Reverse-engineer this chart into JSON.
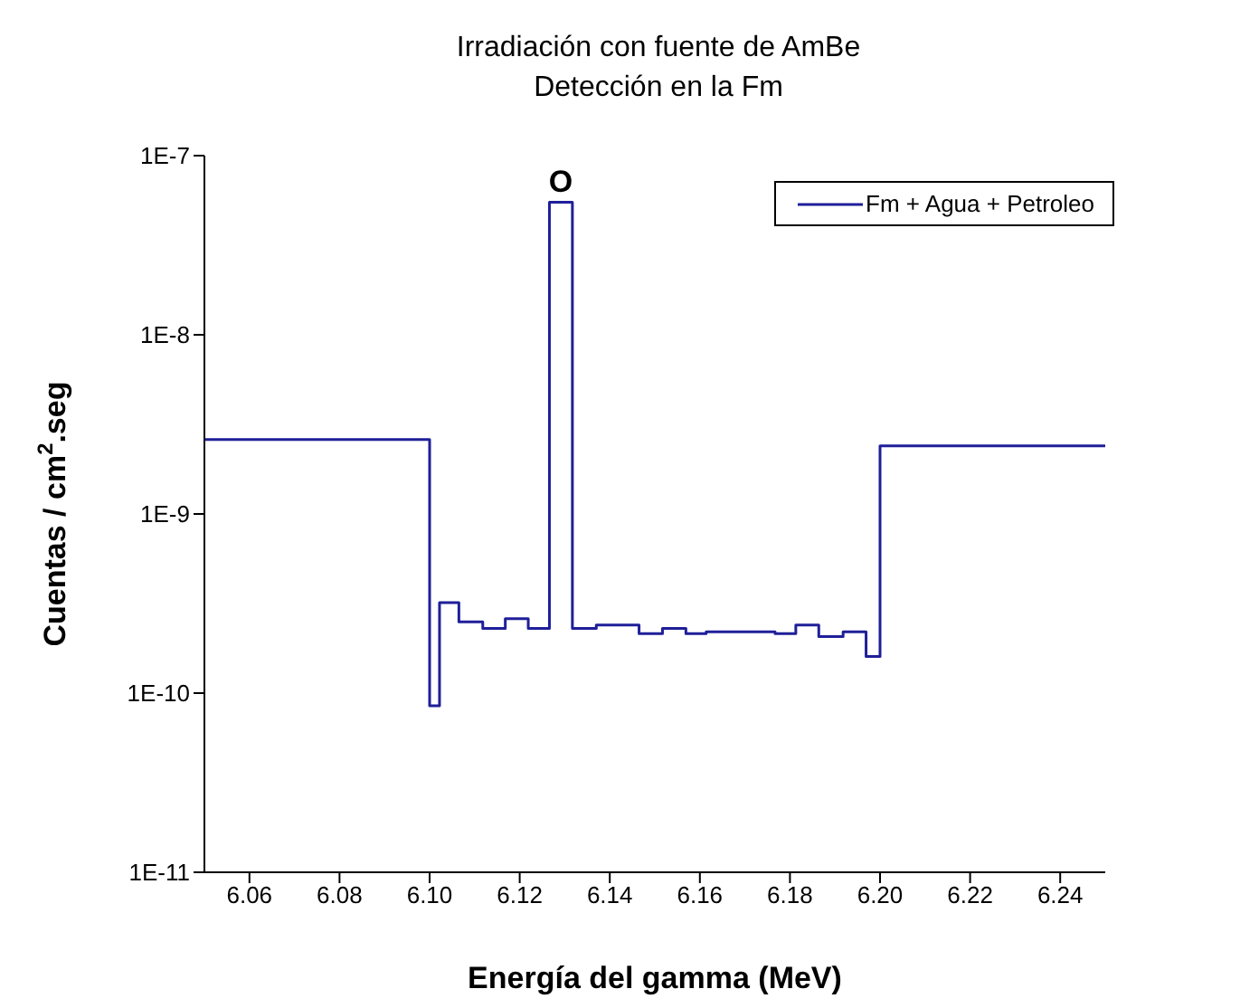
{
  "chart_data": {
    "type": "step",
    "title": "Irradiación con fuente de AmBe",
    "subtitle": "Detección en la Fm",
    "xlabel": "Energía del gamma (MeV)",
    "ylabel": "Cuentas / cm$^{2}$.seg",
    "x": [
      6.05,
      6.1,
      6.1022,
      6.1065,
      6.1118,
      6.1168,
      6.1219,
      6.1266,
      6.1317,
      6.137,
      6.1465,
      6.1517,
      6.1569,
      6.1614,
      6.1767,
      6.1813,
      6.1864,
      6.1918,
      6.1969,
      6.2,
      6.25
    ],
    "series": [
      {
        "name": "Fm + Agua + Petroleo",
        "color": "#1f1f99",
        "values": [
          2.6e-09,
          8.5e-11,
          3.2e-10,
          2.5e-10,
          2.3e-10,
          2.6e-10,
          2.3e-10,
          5.5e-08,
          2.3e-10,
          2.4e-10,
          2.15e-10,
          2.3e-10,
          2.15e-10,
          2.2e-10,
          2.15e-10,
          2.4e-10,
          2.07e-10,
          2.2e-10,
          1.6e-10,
          2.4e-09,
          2.4e-09
        ]
      }
    ],
    "xlim": [
      6.05,
      6.25
    ],
    "xticks": [
      6.06,
      6.08,
      {
        "value": 6.1,
        "label": "6.10"
      },
      6.12,
      6.14,
      6.16,
      6.18,
      {
        "value": 6.2,
        "label": "6.20"
      },
      6.22,
      6.24
    ],
    "ylim": [
      1e-11,
      1e-07
    ],
    "yticks": [
      {
        "value": 1e-11,
        "label": "1E-11"
      },
      {
        "value": 1e-10,
        "label": "1E-10"
      },
      {
        "value": 1e-09,
        "label": "1E-9"
      },
      {
        "value": 1e-08,
        "label": "1E-8"
      },
      {
        "value": 1e-07,
        "label": "1E-7"
      }
    ],
    "log": "y",
    "grid": false,
    "legend": "top right",
    "marker": "none",
    "line_style": "solid",
    "annotations": [
      "O"
    ]
  }
}
